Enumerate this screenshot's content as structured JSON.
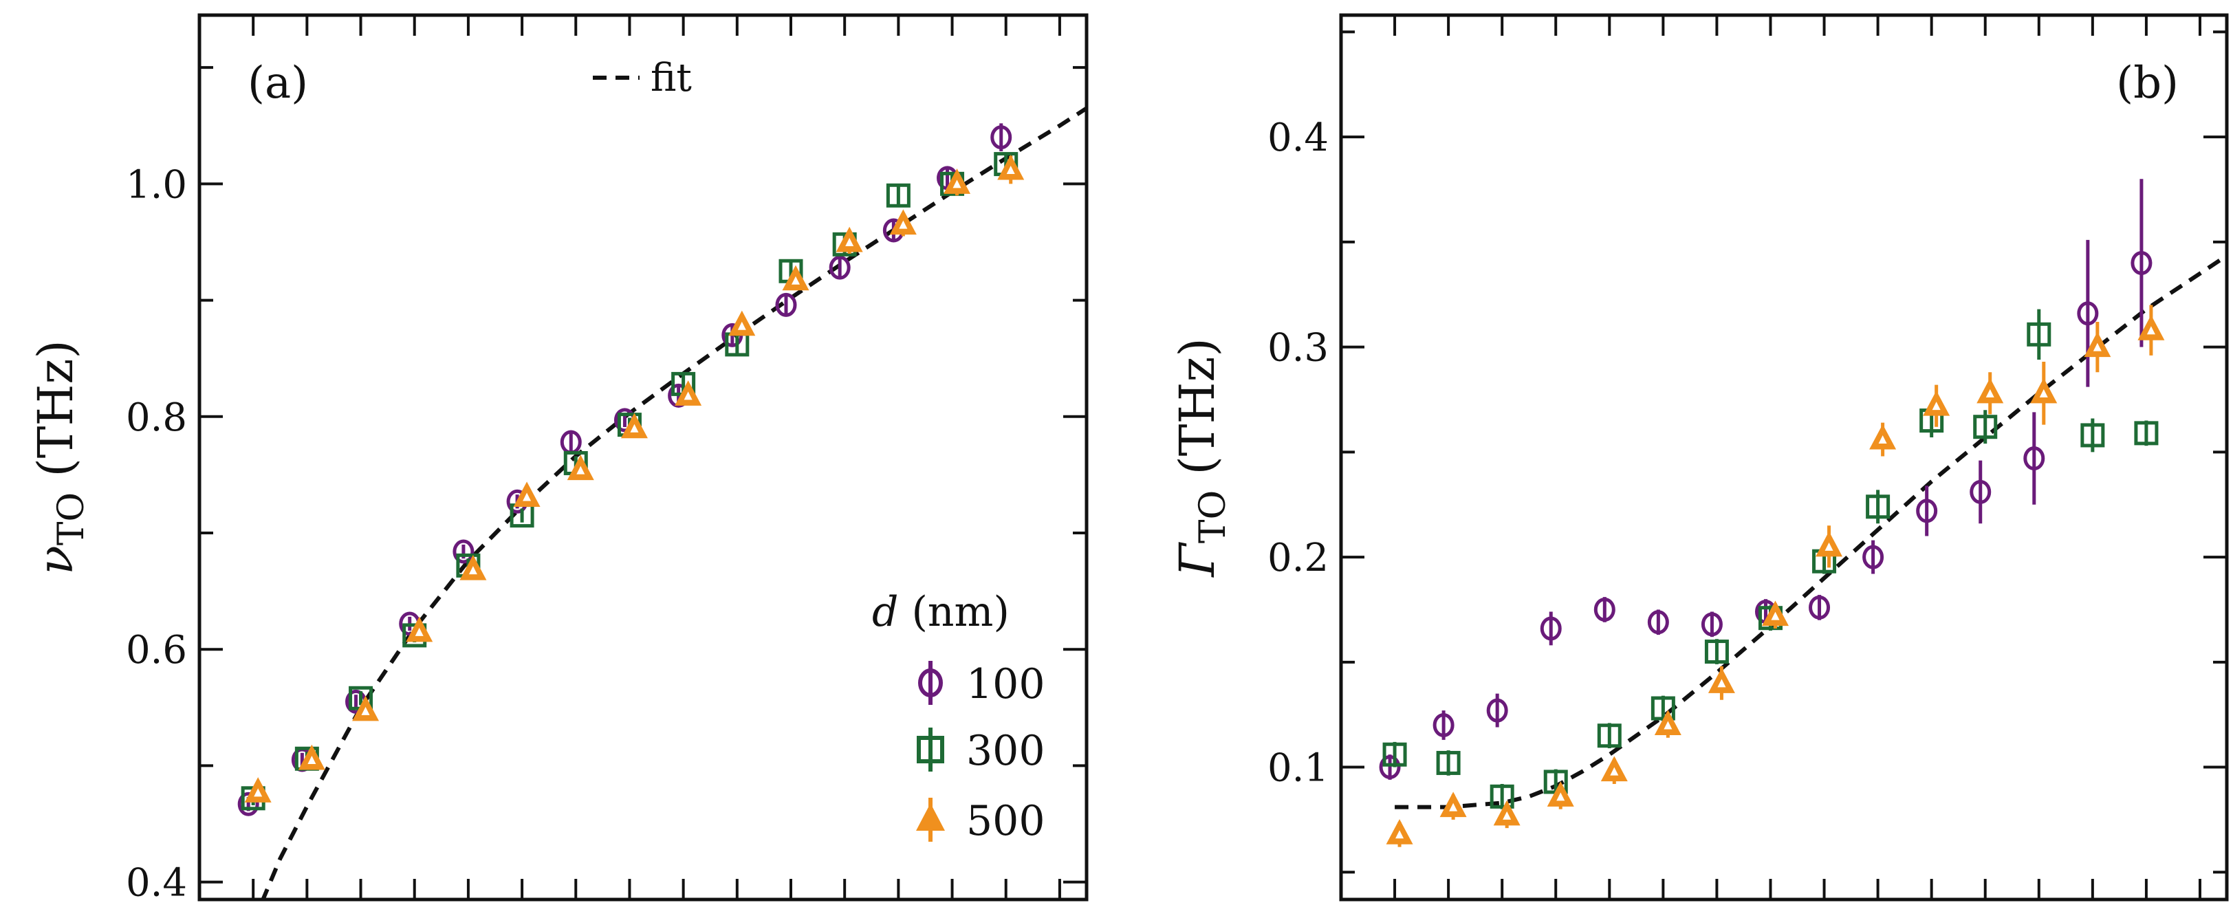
{
  "colors": {
    "d100": "#6a1b7a",
    "d300": "#1e6b35",
    "d500": "#f0901e",
    "fit": "#111111",
    "axis": "#111111"
  },
  "chart_data": [
    {
      "type": "scatter",
      "panel_label": "(a)",
      "ylabel_symbol": "ν",
      "ylabel_sub": "TO",
      "ylabel_unit": "(THz)",
      "ylim": [
        0.385,
        1.145
      ],
      "yticks": [
        0.4,
        0.6,
        0.8,
        1.0
      ],
      "ytick_labels": [
        "0.4",
        "0.6",
        "0.8",
        "1.0"
      ],
      "x_count": 16,
      "legend": {
        "title_italic": "d",
        "title_rest": " (nm)",
        "position": "bottom-right",
        "fit_label": "fit",
        "fit_position": "top-center"
      },
      "series": [
        {
          "name": "100",
          "marker": "circle",
          "values": [
            0.467,
            0.505,
            0.555,
            0.622,
            0.684,
            0.727,
            0.778,
            0.797,
            0.818,
            0.87,
            0.896,
            0.928,
            0.96,
            1.005,
            1.04
          ],
          "errors": [
            0.006,
            0.006,
            0.006,
            0.006,
            0.006,
            0.006,
            0.008,
            0.006,
            0.008,
            0.008,
            0.01,
            0.01,
            0.01,
            0.01,
            0.012
          ]
        },
        {
          "name": "300",
          "marker": "square",
          "values": [
            0.472,
            0.506,
            0.558,
            0.612,
            0.672,
            0.715,
            0.76,
            0.793,
            0.828,
            0.862,
            0.925,
            0.948,
            0.99,
            1.0,
            1.017
          ],
          "errors": [
            0.006,
            0.006,
            0.006,
            0.006,
            0.006,
            0.006,
            0.006,
            0.006,
            0.008,
            0.008,
            0.008,
            0.008,
            0.01,
            0.01,
            0.01
          ]
        },
        {
          "name": "500",
          "marker": "triangle",
          "values": [
            0.477,
            0.505,
            0.547,
            0.615,
            0.668,
            0.731,
            0.754,
            0.79,
            0.818,
            0.878,
            0.917,
            0.95,
            0.965,
            1.0,
            1.012
          ],
          "errors": [
            0.006,
            0.006,
            0.006,
            0.006,
            0.006,
            0.006,
            0.006,
            0.006,
            0.008,
            0.008,
            0.008,
            0.01,
            0.01,
            0.01,
            0.012
          ]
        }
      ],
      "fit": {
        "x": [
          0,
          0.5,
          1,
          2,
          3,
          4,
          5,
          6,
          7,
          8,
          9,
          10,
          11,
          12,
          13,
          14,
          15,
          16
        ],
        "y": [
          0.365,
          0.42,
          0.465,
          0.55,
          0.618,
          0.676,
          0.723,
          0.766,
          0.803,
          0.837,
          0.87,
          0.902,
          0.933,
          0.963,
          0.993,
          1.022,
          1.05,
          1.08
        ]
      }
    },
    {
      "type": "scatter",
      "panel_label": "(b)",
      "ylabel_symbol": "Γ",
      "ylabel_sub": "TO",
      "ylabel_unit": "(THz)",
      "ylim": [
        0.037,
        0.458
      ],
      "yticks": [
        0.1,
        0.2,
        0.3,
        0.4
      ],
      "ytick_labels": [
        "0.1",
        "0.2",
        "0.3",
        "0.4"
      ],
      "x_count": 16,
      "series": [
        {
          "name": "100",
          "marker": "circle",
          "values": [
            0.1,
            0.12,
            0.127,
            0.166,
            0.175,
            0.169,
            0.168,
            0.174,
            0.176,
            0.2,
            0.222,
            0.231,
            0.247,
            0.316,
            0.34
          ],
          "errors": [
            0.006,
            0.007,
            0.008,
            0.008,
            0.006,
            0.006,
            0.006,
            0.006,
            0.006,
            0.008,
            0.012,
            0.015,
            0.022,
            0.035,
            0.04
          ]
        },
        {
          "name": "300",
          "marker": "square",
          "values": [
            0.106,
            0.102,
            0.086,
            0.093,
            0.115,
            0.128,
            0.155,
            0.171,
            0.198,
            0.224,
            0.265,
            0.262,
            0.306,
            0.258,
            0.259
          ],
          "errors": [
            0.006,
            0.006,
            0.006,
            0.006,
            0.006,
            0.006,
            0.006,
            0.006,
            0.006,
            0.008,
            0.008,
            0.008,
            0.012,
            0.008,
            0.006
          ]
        },
        {
          "name": "500",
          "marker": "triangle",
          "values": [
            0.068,
            0.081,
            0.077,
            0.086,
            0.098,
            0.12,
            0.14,
            0.172,
            0.205,
            0.256,
            0.272,
            0.278,
            0.278,
            0.3,
            0.308
          ],
          "errors": [
            0.006,
            0.006,
            0.006,
            0.006,
            0.006,
            0.006,
            0.008,
            0.006,
            0.01,
            0.008,
            0.01,
            0.01,
            0.015,
            0.012,
            0.012
          ]
        }
      ],
      "fit": {
        "x": [
          0,
          1,
          2,
          2.5,
          3,
          3.5,
          4,
          5,
          6,
          7,
          8,
          9,
          10,
          11,
          12,
          13,
          14,
          15,
          16
        ],
        "y": [
          0.081,
          0.081,
          0.083,
          0.086,
          0.091,
          0.098,
          0.106,
          0.124,
          0.145,
          0.167,
          0.19,
          0.213,
          0.236,
          0.257,
          0.278,
          0.298,
          0.318,
          0.335,
          0.352
        ]
      }
    }
  ]
}
